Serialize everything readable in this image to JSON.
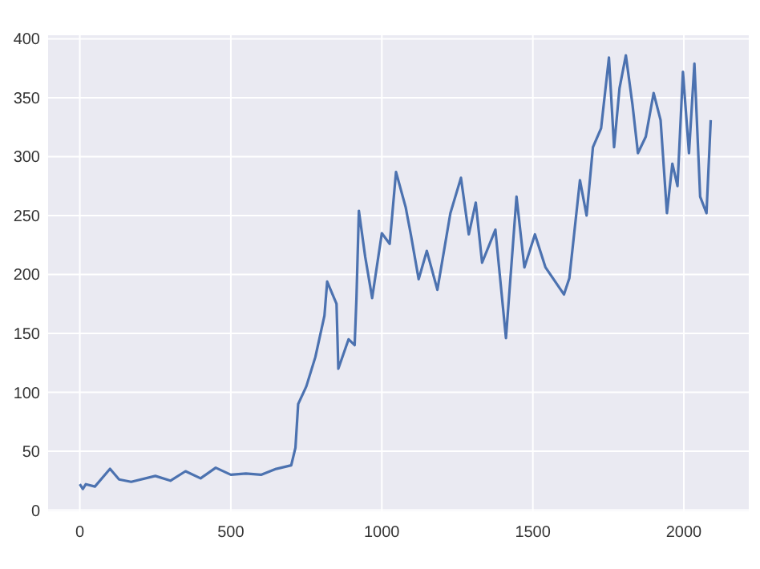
{
  "chart_data": {
    "type": "line",
    "xlim": [
      -105,
      2215
    ],
    "ylim": [
      -1,
      403
    ],
    "xticks": [
      0,
      500,
      1000,
      1500,
      2000
    ],
    "yticks": [
      0,
      50,
      100,
      150,
      200,
      250,
      300,
      350,
      400
    ],
    "grid": true,
    "series": [
      {
        "color": "#4c72b0",
        "x": [
          0,
          10,
          20,
          50,
          100,
          130,
          170,
          250,
          300,
          350,
          400,
          450,
          500,
          550,
          600,
          650,
          700,
          714,
          723,
          750,
          780,
          810,
          819,
          850,
          856,
          890,
          910,
          916,
          924,
          945,
          968,
          1000,
          1026,
          1047,
          1079,
          1096,
          1122,
          1149,
          1184,
          1227,
          1262,
          1288,
          1311,
          1332,
          1376,
          1411,
          1446,
          1472,
          1507,
          1542,
          1603,
          1621,
          1656,
          1678,
          1699,
          1726,
          1752,
          1769,
          1787,
          1808,
          1830,
          1848,
          1874,
          1900,
          1923,
          1944,
          1962,
          1979,
          1997,
          2017,
          2035,
          2054,
          2075,
          2089
        ],
        "values": [
          22,
          18,
          22,
          20,
          35,
          26,
          24,
          29,
          25,
          33,
          27,
          36,
          30,
          31,
          30,
          35,
          38,
          53,
          90,
          105,
          130,
          165,
          194,
          175,
          120,
          145,
          140,
          180,
          254,
          215,
          180,
          235,
          226,
          287,
          257,
          234,
          196,
          220,
          187,
          252,
          282,
          234,
          261,
          210,
          238,
          146,
          266,
          206,
          234,
          206,
          183,
          197,
          280,
          250,
          308,
          324,
          384,
          308,
          358,
          386,
          344,
          303,
          317,
          354,
          331,
          252,
          294,
          275,
          372,
          303,
          379,
          266,
          252,
          331
        ]
      }
    ]
  }
}
